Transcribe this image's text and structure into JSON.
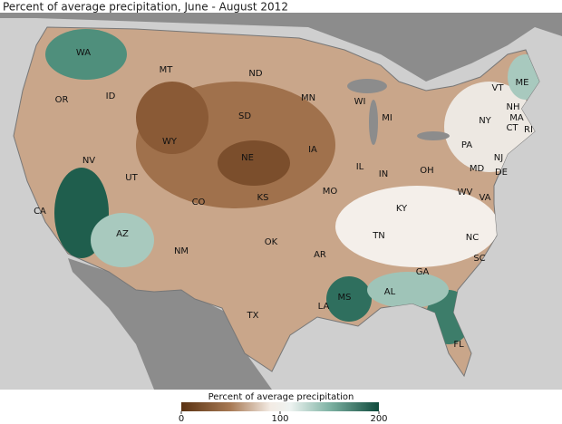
{
  "title": "Percent of average precipitation, June - August 2012",
  "states": [
    "WA",
    "OR",
    "CA",
    "NV",
    "ID",
    "MT",
    "WY",
    "UT",
    "AZ",
    "CO",
    "NM",
    "ND",
    "SD",
    "NE",
    "KS",
    "OK",
    "TX",
    "MN",
    "IA",
    "MO",
    "AR",
    "LA",
    "WI",
    "IL",
    "MS",
    "MI",
    "IN",
    "KY",
    "TN",
    "AL",
    "OH",
    "WV",
    "VA",
    "NC",
    "SC",
    "GA",
    "FL",
    "PA",
    "NY",
    "ME",
    "VT",
    "NH",
    "MA",
    "CT",
    "RI",
    "NJ",
    "MD",
    "DE"
  ],
  "legend": {
    "title": "Percent of average precipitation",
    "ticks": [
      0,
      100,
      200
    ]
  }
}
